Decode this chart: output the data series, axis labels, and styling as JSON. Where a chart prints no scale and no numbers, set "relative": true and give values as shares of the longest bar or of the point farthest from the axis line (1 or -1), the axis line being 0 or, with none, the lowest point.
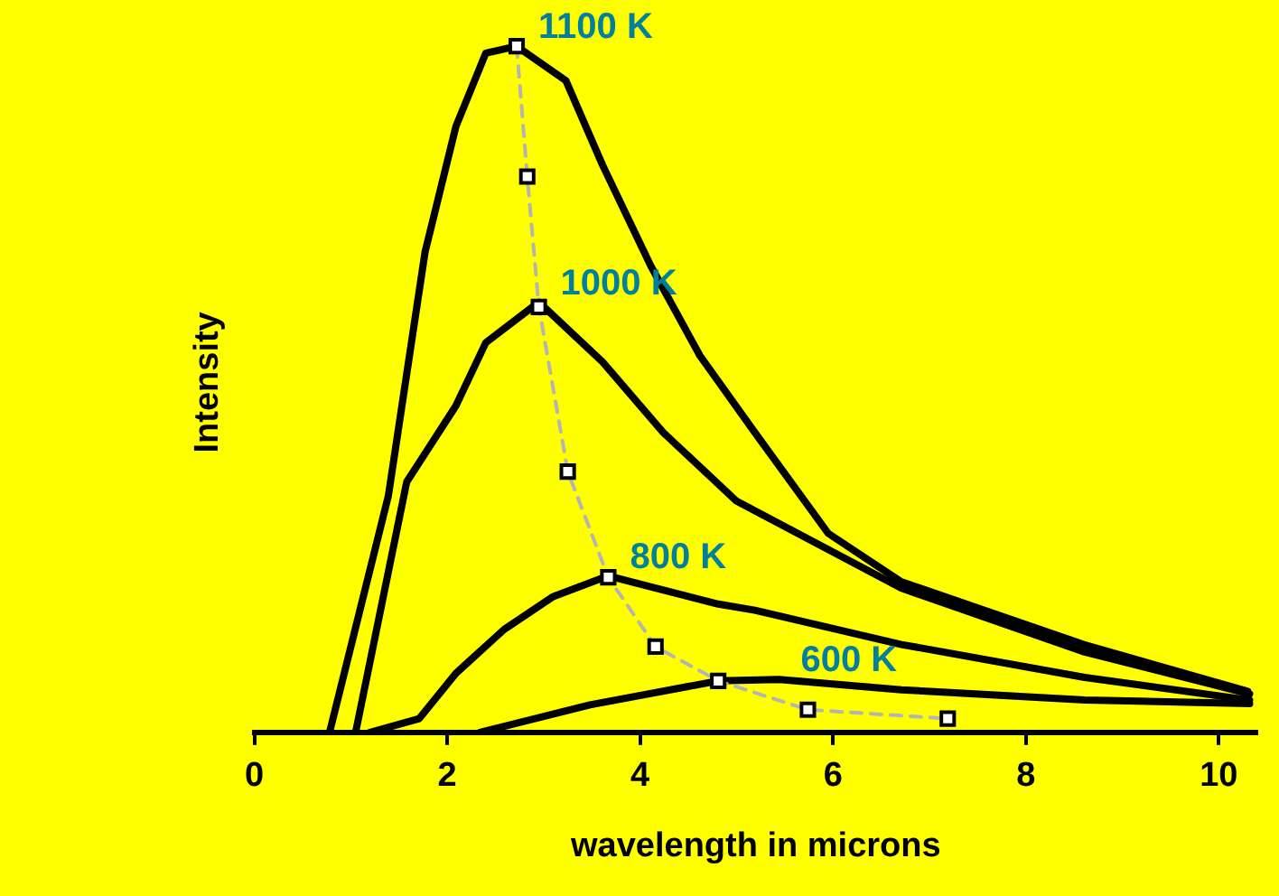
{
  "chart_data": {
    "type": "line",
    "relative": true,
    "xlabel": "wavelength in microns",
    "ylabel": "Intensity",
    "xlim": [
      0,
      10.4
    ],
    "xticks": [
      0,
      2,
      4,
      6,
      8,
      10
    ],
    "grid": false,
    "legend": false,
    "series": [
      {
        "name": "1100 K",
        "color": "#000000",
        "marker": "none",
        "line_style": "solid",
        "x": [
          0.78,
          1.39,
          1.77,
          2.09,
          2.4,
          2.72,
          3.23,
          3.61,
          4.11,
          4.62,
          5.19,
          5.95,
          6.7,
          8.6,
          10.3
        ],
        "values": [
          0,
          0.345,
          0.7,
          0.883,
          0.99,
          1,
          0.95,
          0.827,
          0.68,
          0.549,
          0.437,
          0.29,
          0.22,
          0.128,
          0.06
        ]
      },
      {
        "name": "1000 K",
        "color": "#000000",
        "marker": "none",
        "line_style": "solid",
        "x": [
          1.05,
          1.58,
          2.09,
          2.4,
          2.95,
          3.61,
          4.24,
          5.0,
          6.71,
          8.61,
          10.32
        ],
        "values": [
          0,
          0.365,
          0.476,
          0.568,
          0.627,
          0.54,
          0.437,
          0.337,
          0.21,
          0.117,
          0.056
        ]
      },
      {
        "name": "800 K",
        "color": "#000000",
        "marker": "none",
        "line_style": "solid",
        "x": [
          1.2,
          1.71,
          2.09,
          2.59,
          3.1,
          3.67,
          4.81,
          5.19,
          6.71,
          8.61,
          10.32
        ],
        "values": [
          0,
          0.02,
          0.086,
          0.15,
          0.198,
          0.228,
          0.187,
          0.178,
          0.128,
          0.08,
          0.047
        ]
      },
      {
        "name": "600 K",
        "color": "#000000",
        "marker": "none",
        "line_style": "solid",
        "x": [
          2.34,
          3.48,
          4.81,
          5.44,
          6.71,
          8.61,
          10.32
        ],
        "values": [
          0,
          0.04,
          0.075,
          0.077,
          0.062,
          0.047,
          0.042
        ]
      },
      {
        "color": "#b4b4b4",
        "marker": "square",
        "line_style": "dashed",
        "x": [
          2.72,
          2.83,
          2.95,
          3.25,
          3.67,
          4.16,
          4.81,
          5.74,
          7.19
        ],
        "values": [
          1.0,
          0.81,
          0.62,
          0.38,
          0.226,
          0.125,
          0.075,
          0.033,
          0.02
        ]
      }
    ]
  }
}
